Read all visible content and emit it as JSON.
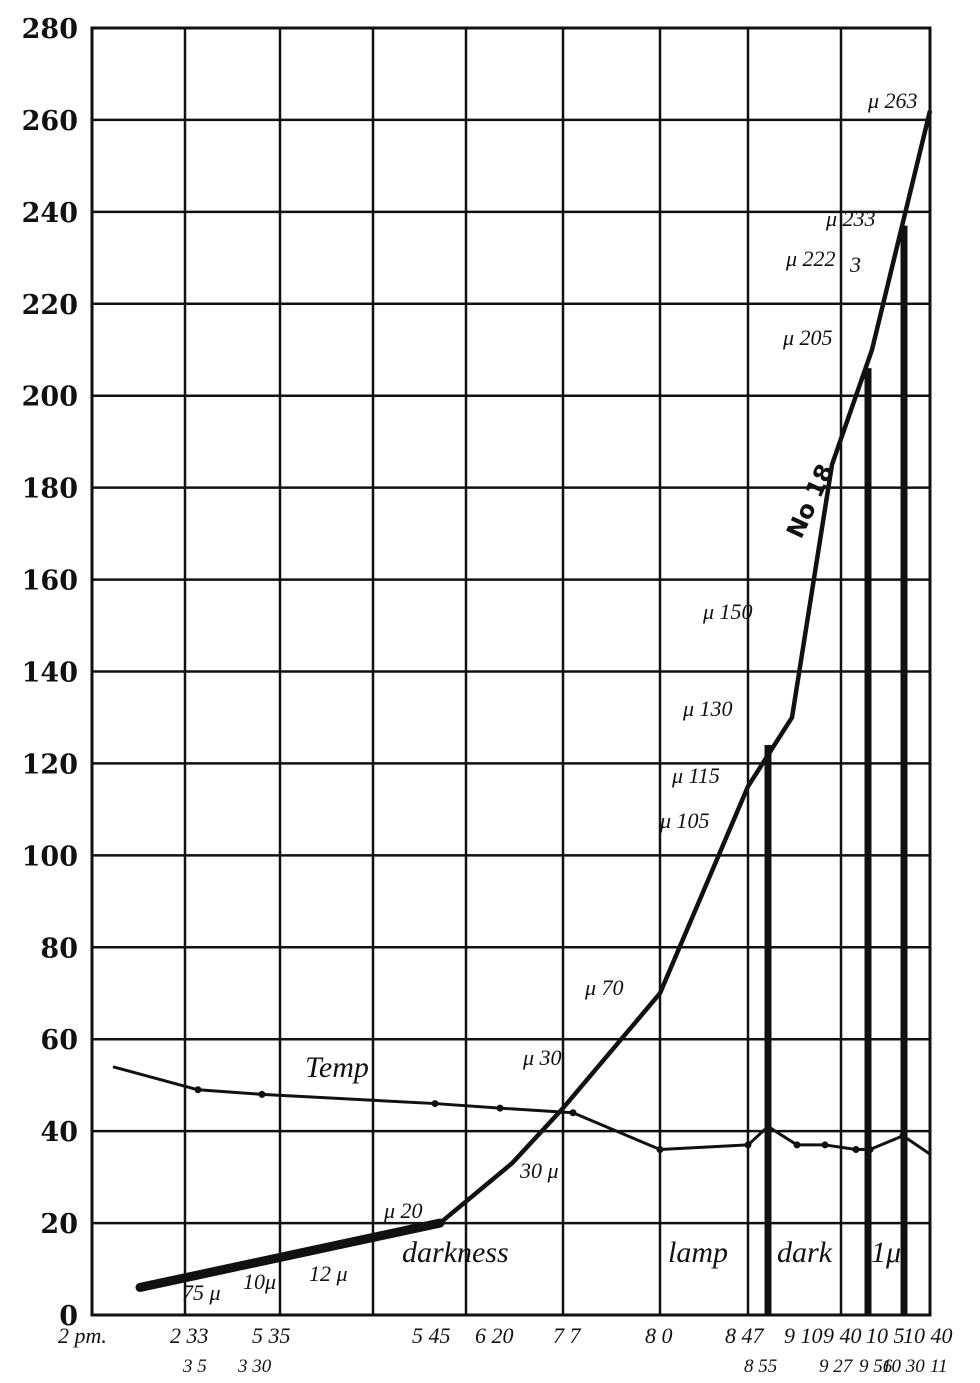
{
  "chart_data": {
    "type": "line",
    "title": "",
    "xlabel": "",
    "ylabel": "",
    "ylim": [
      0,
      280
    ],
    "grid": true,
    "y_ticks": [
      0,
      20,
      40,
      60,
      80,
      100,
      120,
      140,
      160,
      180,
      200,
      220,
      240,
      260,
      280
    ],
    "x_tick_labels_top": [
      "2 pm.",
      "2 33",
      "5 35",
      "5 45",
      "6 20",
      "7 7",
      "8 0",
      "8 47",
      "9 10",
      "9 40",
      "10 5",
      "10 40"
    ],
    "x_tick_labels_bottom": [
      "3 5",
      "3 30",
      "8 55",
      "9 27",
      "9 56",
      "10 30",
      "11"
    ],
    "x_categories": [
      "2 pm.",
      "2 33",
      "3 5",
      "3 30",
      "5 35",
      "5 45",
      "6 20",
      "7 7",
      "8 0",
      "8 47",
      "8 55",
      "9 10",
      "9 27",
      "9 40",
      "9 56",
      "10 5",
      "10 30",
      "10 40",
      "11"
    ],
    "series": [
      {
        "name": "No 18",
        "x": [
          "2 pm.",
          "5 45",
          "6 20",
          "7 7",
          "8 0",
          "8 47",
          "9 10",
          "9 40",
          "10 5",
          "10 40"
        ],
        "values": [
          6,
          20,
          33,
          45,
          70,
          115,
          130,
          185,
          210,
          262
        ]
      },
      {
        "name": "Temp",
        "x": [
          "2 pm.",
          "2 33",
          "3 30",
          "5 45",
          "6 20",
          "7 7",
          "8 0",
          "8 47",
          "8 55",
          "9 10",
          "9 27",
          "9 56",
          "10 5",
          "10 30",
          "10 40"
        ],
        "values": [
          54,
          49,
          48,
          46,
          45,
          44,
          36,
          37,
          41,
          37,
          37,
          36,
          36,
          39,
          35
        ]
      }
    ],
    "bars": [
      {
        "x": "8 55",
        "value": 124
      },
      {
        "x": "9 56",
        "value": 206
      },
      {
        "x": "10 30",
        "value": 237
      }
    ],
    "annotations": {
      "mu_263": "μ 263",
      "mu_233": "μ 233",
      "mu_222": "μ 222",
      "three": "3",
      "mu_205": "μ 205",
      "no18": "No 18",
      "mu_150": "μ 150",
      "mu_130": "μ 130",
      "mu_115": "μ 115",
      "mu_105": "μ 105",
      "mu_70": "μ 70",
      "mu_30": "μ 30",
      "mu30b": "30 μ",
      "mu_20": "μ 20",
      "temp": "Temp",
      "darkness": "darkness",
      "lamp": "lamp",
      "dark": "dark",
      "one_mu": "1μ",
      "mu75": "75 μ",
      "mu10": "10μ",
      "mu12": "12 μ"
    }
  }
}
